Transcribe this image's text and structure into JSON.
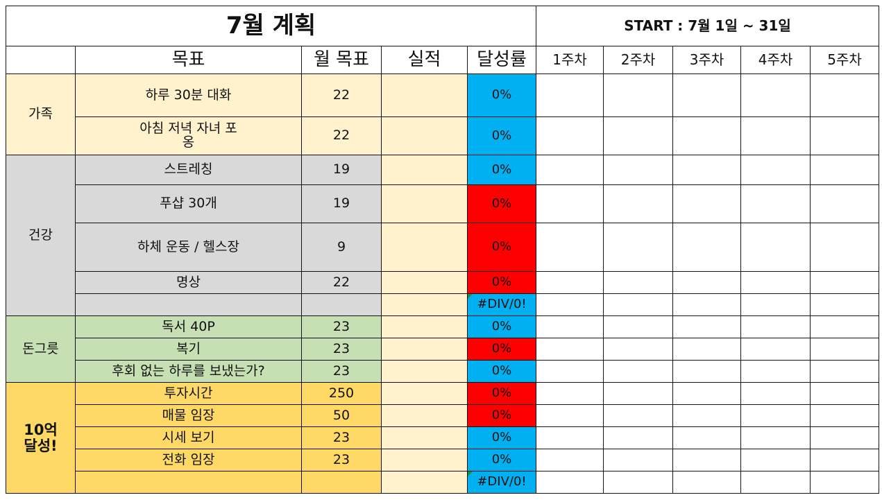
{
  "title": "7월 계획",
  "start": "START : 7월 1일 ~ 31일",
  "headers": {
    "goal": "목표",
    "monthly_target": "월 목표",
    "actual": "실적",
    "rate": "달성률",
    "weeks": [
      "1주차",
      "2주차",
      "3주차",
      "4주차",
      "5주차"
    ]
  },
  "colors": {
    "family": "#fff2cc",
    "health": "#d9d9d9",
    "money_roots": "#c6e0b4",
    "billion": "#ffd966",
    "rate_ok": "#00b0f0",
    "rate_bad": "#ff0000",
    "actual": "#fff2cc"
  },
  "groups": {
    "family": {
      "name": "가족",
      "rows": [
        {
          "goal": "하루 30분 대화",
          "target": "22",
          "rate": "0%"
        },
        {
          "goal": "아침 저녁 자녀 포옹",
          "target": "22",
          "rate": "0%"
        }
      ]
    },
    "health": {
      "name": "건강",
      "rows": [
        {
          "goal": "스트레칭",
          "target": "19",
          "rate": "0%"
        },
        {
          "goal": "푸샵 30개",
          "target": "19",
          "rate": "0%"
        },
        {
          "goal": "하체 운동 / 헬스장",
          "target": "9",
          "rate": "0%"
        },
        {
          "goal": "명상",
          "target": "22",
          "rate": "0%"
        },
        {
          "goal": "",
          "target": "",
          "rate": "#DIV/0!"
        }
      ]
    },
    "money_roots": {
      "name": "돈그릇",
      "rows": [
        {
          "goal": "독서 40P",
          "target": "23",
          "rate": "0%"
        },
        {
          "goal": "복기",
          "target": "23",
          "rate": "0%"
        },
        {
          "goal": "후회 없는 하루를 보냈는가?",
          "target": "23",
          "rate": "0%"
        }
      ]
    },
    "billion": {
      "name": "10억 달성!",
      "rows": [
        {
          "goal": "투자시간",
          "target": "250",
          "rate": "0%"
        },
        {
          "goal": "매물 임장",
          "target": "50",
          "rate": "0%"
        },
        {
          "goal": "시세 보기",
          "target": "23",
          "rate": "0%"
        },
        {
          "goal": "전화 임장",
          "target": "23",
          "rate": "0%"
        },
        {
          "goal": "",
          "target": "",
          "rate": "#DIV/0!"
        }
      ]
    }
  }
}
